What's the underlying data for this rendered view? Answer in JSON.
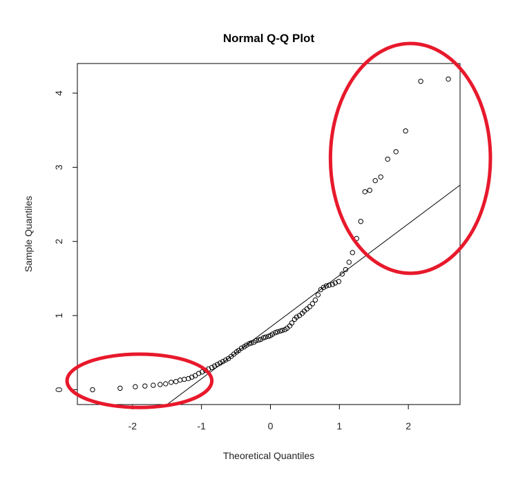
{
  "chart_data": {
    "type": "scatter",
    "title": "Normal Q-Q Plot",
    "xlabel": "Theoretical Quantiles",
    "ylabel": "Sample Quantiles",
    "xlim": [
      -2.8,
      2.75
    ],
    "ylim": [
      -0.2,
      4.4
    ],
    "xticks": [
      -2,
      -1,
      0,
      1,
      2
    ],
    "yticks": [
      0,
      1,
      2,
      3,
      4
    ],
    "xtick_labels": [
      "-2",
      "-1",
      "0",
      "1",
      "2"
    ],
    "ytick_labels": [
      "0",
      "1",
      "2",
      "3",
      "4"
    ],
    "reference_line": {
      "x1": -1.5,
      "y1": -0.2,
      "x2": 2.75,
      "y2": 2.76
    },
    "points": [
      [
        -2.58,
        0.0
      ],
      [
        -2.18,
        0.02
      ],
      [
        -1.96,
        0.04
      ],
      [
        -1.82,
        0.05
      ],
      [
        -1.7,
        0.06
      ],
      [
        -1.6,
        0.07
      ],
      [
        -1.52,
        0.08
      ],
      [
        -1.44,
        0.1
      ],
      [
        -1.37,
        0.11
      ],
      [
        -1.31,
        0.13
      ],
      [
        -1.25,
        0.14
      ],
      [
        -1.19,
        0.15
      ],
      [
        -1.14,
        0.17
      ],
      [
        -1.09,
        0.19
      ],
      [
        -1.04,
        0.22
      ],
      [
        -0.99,
        0.24
      ],
      [
        -0.94,
        0.26
      ],
      [
        -0.9,
        0.28
      ],
      [
        -0.85,
        0.3
      ],
      [
        -0.81,
        0.32
      ],
      [
        -0.77,
        0.34
      ],
      [
        -0.73,
        0.36
      ],
      [
        -0.69,
        0.38
      ],
      [
        -0.65,
        0.4
      ],
      [
        -0.61,
        0.42
      ],
      [
        -0.57,
        0.45
      ],
      [
        -0.53,
        0.48
      ],
      [
        -0.49,
        0.51
      ],
      [
        -0.46,
        0.53
      ],
      [
        -0.42,
        0.56
      ],
      [
        -0.38,
        0.58
      ],
      [
        -0.35,
        0.6
      ],
      [
        -0.31,
        0.62
      ],
      [
        -0.28,
        0.63
      ],
      [
        -0.24,
        0.64
      ],
      [
        -0.21,
        0.66
      ],
      [
        -0.17,
        0.67
      ],
      [
        -0.14,
        0.68
      ],
      [
        -0.1,
        0.7
      ],
      [
        -0.07,
        0.71
      ],
      [
        -0.03,
        0.72
      ],
      [
        0.0,
        0.73
      ],
      [
        0.03,
        0.75
      ],
      [
        0.07,
        0.77
      ],
      [
        0.1,
        0.78
      ],
      [
        0.14,
        0.79
      ],
      [
        0.17,
        0.8
      ],
      [
        0.21,
        0.81
      ],
      [
        0.24,
        0.83
      ],
      [
        0.28,
        0.86
      ],
      [
        0.31,
        0.9
      ],
      [
        0.35,
        0.95
      ],
      [
        0.38,
        0.98
      ],
      [
        0.42,
        1.0
      ],
      [
        0.46,
        1.03
      ],
      [
        0.49,
        1.06
      ],
      [
        0.53,
        1.09
      ],
      [
        0.57,
        1.12
      ],
      [
        0.61,
        1.16
      ],
      [
        0.65,
        1.21
      ],
      [
        0.69,
        1.28
      ],
      [
        0.73,
        1.35
      ],
      [
        0.77,
        1.38
      ],
      [
        0.81,
        1.4
      ],
      [
        0.85,
        1.41
      ],
      [
        0.9,
        1.42
      ],
      [
        0.94,
        1.44
      ],
      [
        0.99,
        1.46
      ],
      [
        1.04,
        1.56
      ],
      [
        1.09,
        1.62
      ],
      [
        1.14,
        1.72
      ],
      [
        1.19,
        1.85
      ],
      [
        1.25,
        2.04
      ],
      [
        1.31,
        2.27
      ],
      [
        1.37,
        2.67
      ],
      [
        1.44,
        2.69
      ],
      [
        1.52,
        2.82
      ],
      [
        1.6,
        2.87
      ],
      [
        1.7,
        3.11
      ],
      [
        1.82,
        3.21
      ],
      [
        1.96,
        3.49
      ],
      [
        2.18,
        4.16
      ],
      [
        2.58,
        4.19
      ]
    ],
    "annotations": [
      {
        "shape": "ellipse",
        "color": "#e8192c",
        "center": [
          -1.9,
          0.12
        ],
        "radii": [
          1.05,
          0.36
        ]
      },
      {
        "shape": "ellipse",
        "color": "#e8192c",
        "center": [
          2.03,
          3.12
        ],
        "radii": [
          1.16,
          1.55
        ]
      }
    ]
  }
}
